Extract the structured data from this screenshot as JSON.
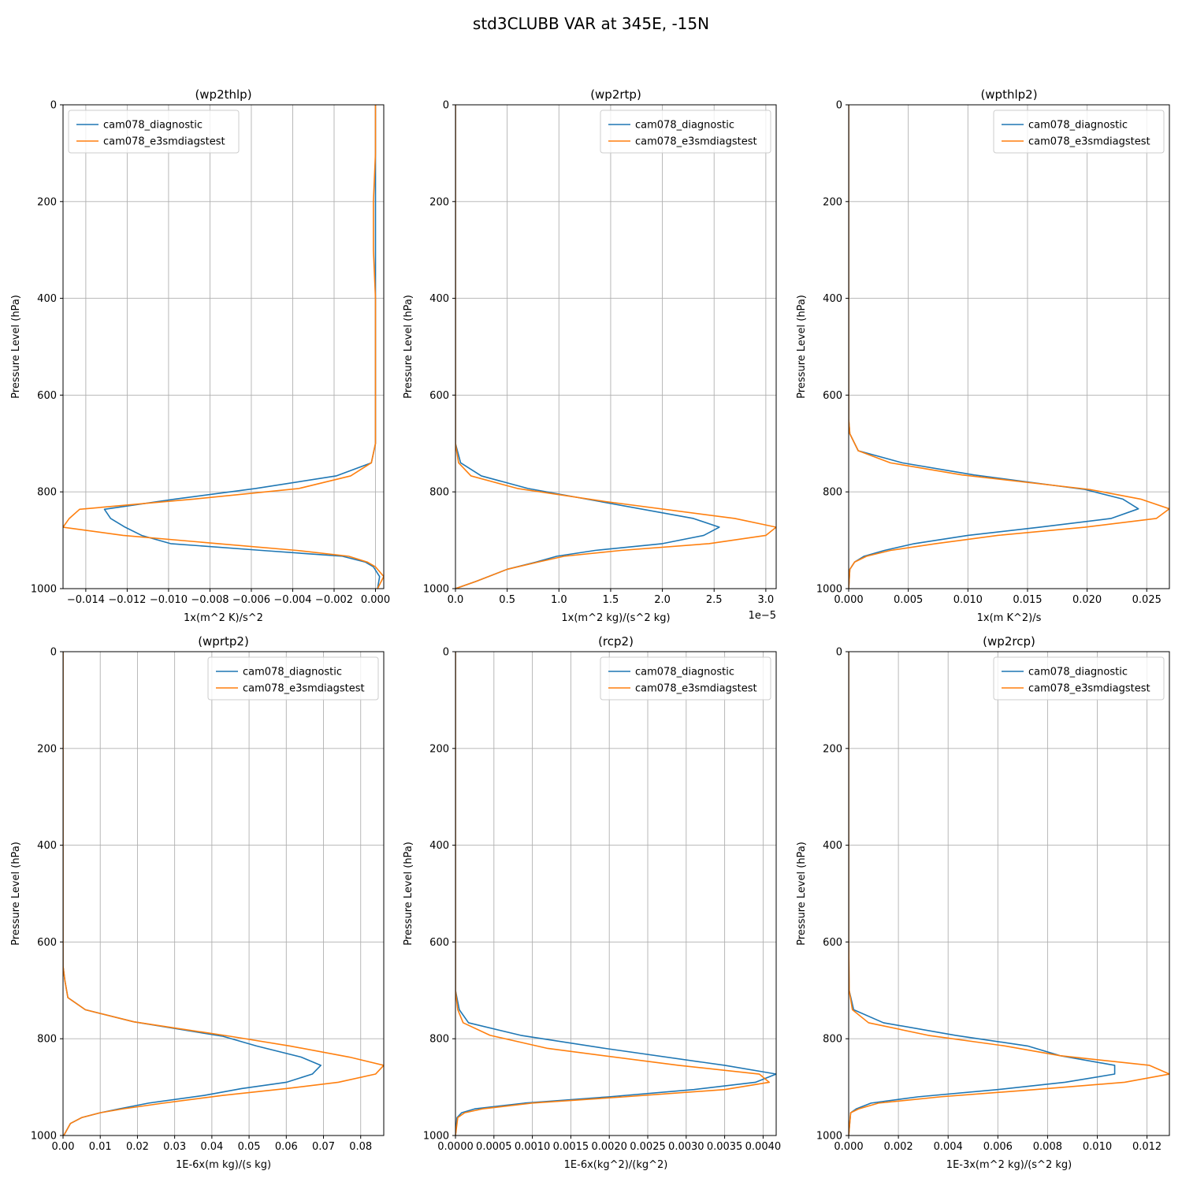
{
  "figure": {
    "title": "std3CLUBB VAR at 345E, -15N"
  },
  "chart_data": [
    {
      "type": "line",
      "title": "(wp2thlp)",
      "xlabel": "1x(m^2 K)/s^2",
      "ylabel": "Pressure Level (hPa)",
      "xlim": [
        -0.0151,
        0.0004
      ],
      "ylim": [
        1000,
        0
      ],
      "y_inverted": true,
      "xticks": [
        -0.014,
        -0.012,
        -0.01,
        -0.008,
        -0.006,
        -0.004,
        -0.002,
        0.0
      ],
      "xtick_labels": [
        "−0.014",
        "−0.012",
        "−0.010",
        "−0.008",
        "−0.006",
        "−0.004",
        "−0.002",
        "0.000"
      ],
      "yticks": [
        0,
        200,
        400,
        600,
        800,
        1000
      ],
      "ytick_labels": [
        "0",
        "200",
        "400",
        "600",
        "800",
        "1000"
      ],
      "offset_label": "",
      "grid": true,
      "legend_position": "upper left",
      "series": [
        {
          "name": "cam078_diagnostic",
          "color": "#1f77b4",
          "x": [
            0.0,
            0.0,
            0.0,
            0.0,
            0.0,
            0.0,
            0.0,
            0.0,
            -0.0002,
            -0.0019,
            -0.0058,
            -0.0097,
            -0.0131,
            -0.0128,
            -0.0121,
            -0.0113,
            -0.0099,
            -0.0055,
            -0.0016,
            -0.0005,
            -0.0001,
            0.0002,
            0.0001
          ],
          "y": [
            0,
            100,
            200,
            300,
            400,
            500,
            600,
            700,
            740,
            767,
            793,
            815,
            836,
            855,
            873,
            890,
            907,
            921,
            933,
            945,
            955,
            975,
            1000
          ]
        },
        {
          "name": "cam078_e3smdiagstest",
          "color": "#ff7f0e",
          "x": [
            0.0,
            0.0,
            -0.0001,
            -0.0001,
            0.0,
            0.0,
            0.0,
            0.0,
            -0.0002,
            -0.0012,
            -0.0037,
            -0.0088,
            -0.0143,
            -0.0148,
            -0.0151,
            -0.0122,
            -0.0076,
            -0.0038,
            -0.0013,
            -0.0004,
            0.0,
            0.0004,
            0.0001
          ],
          "y": [
            0,
            100,
            200,
            300,
            400,
            500,
            600,
            700,
            740,
            767,
            793,
            815,
            836,
            855,
            873,
            890,
            907,
            921,
            933,
            945,
            955,
            975,
            1000
          ]
        }
      ]
    },
    {
      "type": "line",
      "title": "(wp2rtp)",
      "xlabel": "1x(m^2 kg)/(s^2 kg)",
      "ylabel": "Pressure Level (hPa)",
      "xlim": [
        0,
        3.1e-05
      ],
      "ylim": [
        1000,
        0
      ],
      "y_inverted": true,
      "xticks": [
        0,
        5e-06,
        1e-05,
        1.5e-05,
        2e-05,
        2.5e-05,
        3e-05
      ],
      "xtick_labels": [
        "0.0",
        "0.5",
        "1.0",
        "1.5",
        "2.0",
        "2.5",
        "3.0"
      ],
      "yticks": [
        0,
        200,
        400,
        600,
        800,
        1000
      ],
      "ytick_labels": [
        "0",
        "200",
        "400",
        "600",
        "800",
        "1000"
      ],
      "offset_label": "1e−5",
      "grid": true,
      "legend_position": "upper right",
      "series": [
        {
          "name": "cam078_diagnostic",
          "color": "#1f77b4",
          "x": [
            0.0,
            0.0,
            0.0,
            0.0,
            0.0,
            0.0,
            0.0,
            0.0,
            5e-07,
            2.5e-06,
            7e-06,
            1.4e-05,
            2.3e-05,
            2.55e-05,
            2.4e-05,
            2e-05,
            1.35e-05,
            9.8e-06,
            7.8e-06,
            5e-06,
            2e-06,
            0.0
          ],
          "y": [
            0,
            100,
            200,
            300,
            400,
            500,
            600,
            700,
            740,
            767,
            793,
            820,
            855,
            873,
            890,
            907,
            921,
            933,
            945,
            960,
            985,
            1000
          ]
        },
        {
          "name": "cam078_e3smdiagstest",
          "color": "#ff7f0e",
          "x": [
            0.0,
            0.0,
            0.0,
            0.0,
            0.0,
            0.0,
            0.0,
            0.0,
            3e-07,
            1.5e-06,
            6e-06,
            1.45e-05,
            2.7e-05,
            3.1e-05,
            3e-05,
            2.45e-05,
            1.6e-05,
            1.05e-05,
            8e-06,
            5e-06,
            2e-06,
            0.0
          ],
          "y": [
            0,
            100,
            200,
            300,
            400,
            500,
            600,
            700,
            740,
            767,
            793,
            820,
            855,
            873,
            890,
            907,
            921,
            933,
            945,
            960,
            985,
            1000
          ]
        }
      ]
    },
    {
      "type": "line",
      "title": "(wpthlp2)",
      "xlabel": "1x(m K^2)/s",
      "ylabel": "Pressure Level (hPa)",
      "xlim": [
        0,
        0.0269
      ],
      "ylim": [
        1000,
        0
      ],
      "y_inverted": true,
      "xticks": [
        0,
        0.005,
        0.01,
        0.015,
        0.02,
        0.025
      ],
      "xtick_labels": [
        "0.000",
        "0.005",
        "0.010",
        "0.015",
        "0.020",
        "0.025"
      ],
      "yticks": [
        0,
        200,
        400,
        600,
        800,
        1000
      ],
      "ytick_labels": [
        "0",
        "200",
        "400",
        "600",
        "800",
        "1000"
      ],
      "offset_label": "",
      "grid": true,
      "legend_position": "upper right",
      "series": [
        {
          "name": "cam078_diagnostic",
          "color": "#1f77b4",
          "x": [
            0.0,
            0.0,
            0.0,
            0.0,
            0.0,
            0.0,
            0.0,
            0.0,
            0.0001,
            0.0008,
            0.0045,
            0.0105,
            0.0198,
            0.023,
            0.0243,
            0.022,
            0.016,
            0.01,
            0.0055,
            0.003,
            0.0013,
            0.0005,
            0.0001,
            0.0
          ],
          "y": [
            0,
            100,
            200,
            300,
            400,
            500,
            600,
            650,
            680,
            715,
            740,
            765,
            795,
            815,
            835,
            855,
            873,
            890,
            907,
            921,
            933,
            945,
            960,
            1000
          ]
        },
        {
          "name": "cam078_e3smdiagstest",
          "color": "#ff7f0e",
          "x": [
            0.0,
            0.0,
            0.0,
            0.0,
            0.0,
            0.0,
            0.0,
            0.0,
            0.0001,
            0.0008,
            0.0035,
            0.0095,
            0.0202,
            0.0245,
            0.0269,
            0.0258,
            0.0198,
            0.0125,
            0.0073,
            0.0035,
            0.0015,
            0.0005,
            0.0001,
            0.0
          ],
          "y": [
            0,
            100,
            200,
            300,
            400,
            500,
            600,
            650,
            680,
            715,
            740,
            765,
            795,
            815,
            835,
            855,
            873,
            890,
            907,
            921,
            933,
            945,
            960,
            1000
          ]
        }
      ]
    },
    {
      "type": "line",
      "title": "(wprtp2)",
      "xlabel": "1E-6x(m kg)/(s kg)",
      "ylabel": "Pressure Level (hPa)",
      "xlim": [
        0,
        0.0862
      ],
      "ylim": [
        1000,
        0
      ],
      "y_inverted": true,
      "xticks": [
        0,
        0.01,
        0.02,
        0.03,
        0.04,
        0.05,
        0.06,
        0.07,
        0.08
      ],
      "xtick_labels": [
        "0.00",
        "0.01",
        "0.02",
        "0.03",
        "0.04",
        "0.05",
        "0.06",
        "0.07",
        "0.08"
      ],
      "yticks": [
        0,
        200,
        400,
        600,
        800,
        1000
      ],
      "ytick_labels": [
        "0",
        "200",
        "400",
        "600",
        "800",
        "1000"
      ],
      "offset_label": "",
      "grid": true,
      "legend_position": "upper right",
      "series": [
        {
          "name": "cam078_diagnostic",
          "color": "#1f77b4",
          "x": [
            0.0,
            0.0,
            0.0,
            0.0,
            0.0,
            0.0,
            0.0,
            0.0,
            0.0005,
            0.0013,
            0.006,
            0.019,
            0.043,
            0.052,
            0.064,
            0.0693,
            0.067,
            0.06,
            0.048,
            0.038,
            0.023,
            0.015,
            0.01,
            0.005,
            0.002,
            0.0002
          ],
          "y": [
            0,
            100,
            200,
            300,
            400,
            500,
            600,
            650,
            680,
            715,
            740,
            765,
            795,
            815,
            838,
            855,
            873,
            890,
            903,
            917,
            933,
            945,
            953,
            963,
            975,
            1000
          ]
        },
        {
          "name": "cam078_e3smdiagstest",
          "color": "#ff7f0e",
          "x": [
            0.0,
            0.0,
            0.0,
            0.0,
            0.0,
            0.0,
            0.0,
            0.0,
            0.0005,
            0.0013,
            0.006,
            0.019,
            0.045,
            0.061,
            0.077,
            0.0862,
            0.084,
            0.074,
            0.06,
            0.043,
            0.027,
            0.016,
            0.01,
            0.005,
            0.002,
            0.0002
          ],
          "y": [
            0,
            100,
            200,
            300,
            400,
            500,
            600,
            650,
            680,
            715,
            740,
            765,
            795,
            815,
            838,
            855,
            873,
            890,
            903,
            917,
            933,
            945,
            953,
            963,
            975,
            1000
          ]
        }
      ]
    },
    {
      "type": "line",
      "title": "(rcp2)",
      "xlabel": "1E-6x(kg^2)/(kg^2)",
      "ylabel": "Pressure Level (hPa)",
      "xlim": [
        0,
        0.00417
      ],
      "ylim": [
        1000,
        0
      ],
      "y_inverted": true,
      "xticks": [
        0,
        0.0005,
        0.001,
        0.0015,
        0.002,
        0.0025,
        0.003,
        0.0035,
        0.004
      ],
      "xtick_labels": [
        "0.0000",
        "0.0005",
        "0.0010",
        "0.0015",
        "0.0020",
        "0.0025",
        "0.0030",
        "0.0035",
        "0.0040"
      ],
      "yticks": [
        0,
        200,
        400,
        600,
        800,
        1000
      ],
      "ytick_labels": [
        "0",
        "200",
        "400",
        "600",
        "800",
        "1000"
      ],
      "offset_label": "",
      "grid": true,
      "legend_position": "upper right",
      "series": [
        {
          "name": "cam078_diagnostic",
          "color": "#1f77b4",
          "x": [
            0.0,
            0.0,
            0.0,
            0.0,
            0.0,
            0.0,
            0.0,
            0.0,
            5e-05,
            0.00017,
            0.00085,
            0.00195,
            0.0035,
            0.00417,
            0.0039,
            0.0031,
            0.002,
            0.0009,
            0.00025,
            8e-05,
            2e-05,
            0.0
          ],
          "y": [
            0,
            100,
            200,
            300,
            400,
            500,
            600,
            700,
            740,
            767,
            793,
            820,
            855,
            873,
            890,
            905,
            920,
            933,
            945,
            953,
            963,
            1000
          ]
        },
        {
          "name": "cam078_e3smdiagstest",
          "color": "#ff7f0e",
          "x": [
            0.0,
            0.0,
            0.0,
            0.0,
            0.0,
            0.0,
            0.0,
            0.0,
            3e-05,
            0.0001,
            0.00045,
            0.0012,
            0.0029,
            0.00395,
            0.00408,
            0.0035,
            0.0022,
            0.001,
            0.00035,
            0.00012,
            3e-05,
            0.0
          ],
          "y": [
            0,
            100,
            200,
            300,
            400,
            500,
            600,
            700,
            740,
            767,
            793,
            820,
            855,
            873,
            890,
            905,
            920,
            933,
            945,
            953,
            963,
            1000
          ]
        }
      ]
    },
    {
      "type": "line",
      "title": "(wp2rcp)",
      "xlabel": "1E-3x(m^2 kg)/(s^2 kg)",
      "ylabel": "Pressure Level (hPa)",
      "xlim": [
        0,
        0.0129
      ],
      "ylim": [
        1000,
        0
      ],
      "y_inverted": true,
      "xticks": [
        0,
        0.002,
        0.004,
        0.006,
        0.008,
        0.01,
        0.012
      ],
      "xtick_labels": [
        "0.000",
        "0.002",
        "0.004",
        "0.006",
        "0.008",
        "0.010",
        "0.012"
      ],
      "yticks": [
        0,
        200,
        400,
        600,
        800,
        1000
      ],
      "ytick_labels": [
        "0",
        "200",
        "400",
        "600",
        "800",
        "1000"
      ],
      "offset_label": "",
      "grid": true,
      "legend_position": "upper right",
      "series": [
        {
          "name": "cam078_diagnostic",
          "color": "#1f77b4",
          "x": [
            0.0,
            0.0,
            0.0,
            0.0,
            0.0,
            0.0,
            0.0,
            2e-05,
            0.0002,
            0.0014,
            0.0043,
            0.0072,
            0.0085,
            0.0107,
            0.0107,
            0.0087,
            0.006,
            0.0028,
            0.0009,
            0.0003,
            8e-05,
            0.0
          ],
          "y": [
            0,
            100,
            200,
            300,
            400,
            500,
            600,
            700,
            740,
            767,
            793,
            815,
            835,
            855,
            873,
            890,
            905,
            920,
            933,
            945,
            953,
            1000
          ]
        },
        {
          "name": "cam078_e3smdiagstest",
          "color": "#ff7f0e",
          "x": [
            0.0,
            0.0,
            0.0,
            0.0,
            0.0,
            0.0,
            0.0,
            2e-05,
            0.00015,
            0.0008,
            0.0032,
            0.0063,
            0.0085,
            0.0121,
            0.0129,
            0.0111,
            0.0075,
            0.0037,
            0.0012,
            0.0004,
            8e-05,
            0.0
          ],
          "y": [
            0,
            100,
            200,
            300,
            400,
            500,
            600,
            700,
            740,
            767,
            793,
            815,
            835,
            855,
            873,
            890,
            905,
            920,
            933,
            945,
            953,
            1000
          ]
        }
      ]
    }
  ]
}
